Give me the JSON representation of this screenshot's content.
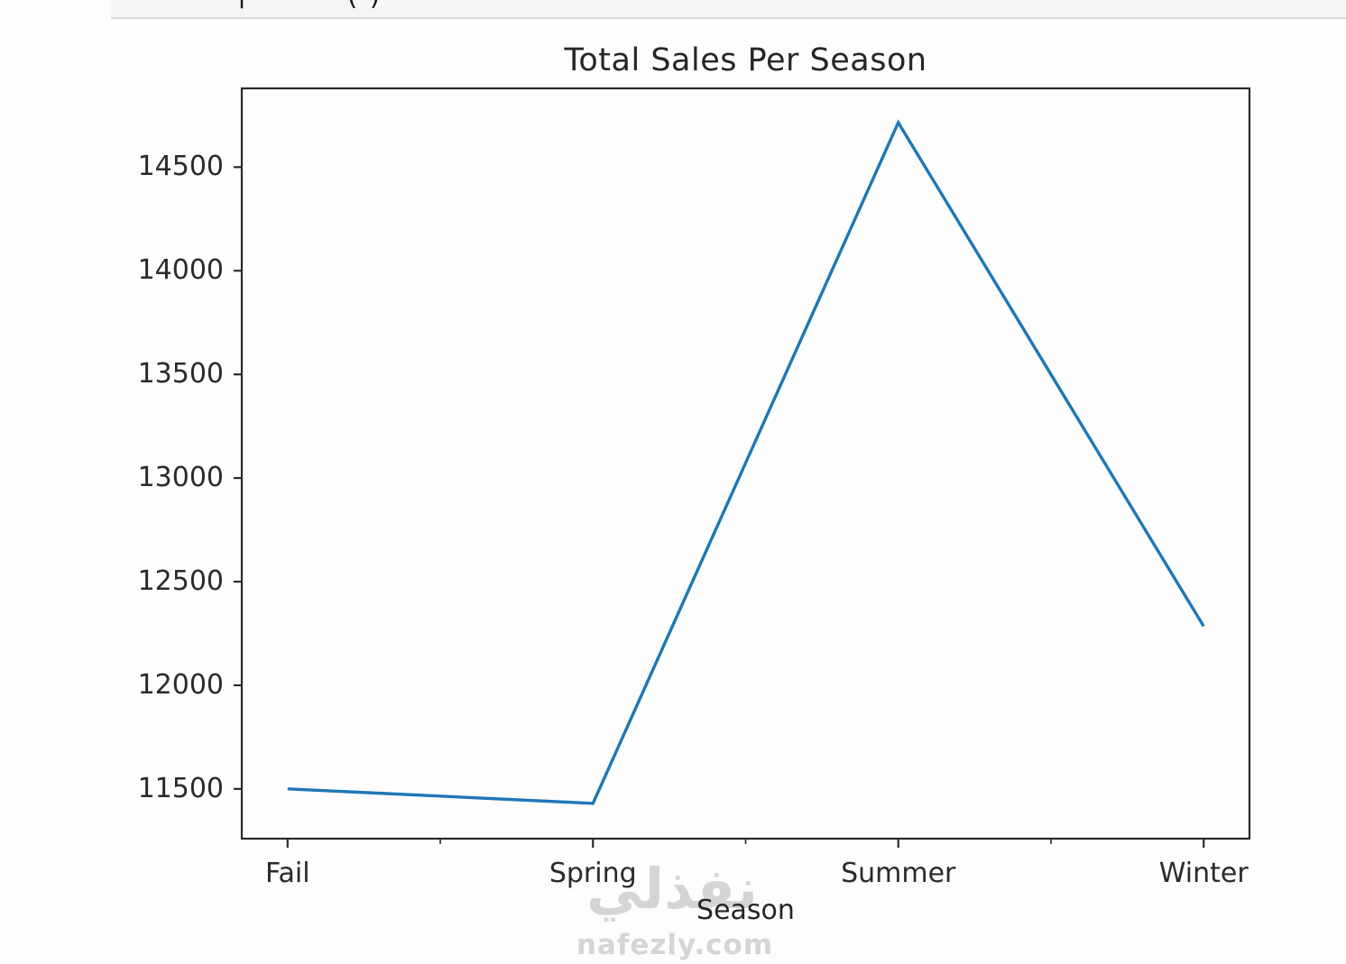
{
  "page": {
    "top_bar": {
      "fragments": [
        "|",
        "()"
      ]
    }
  },
  "chart_data": {
    "type": "line",
    "title": "Total Sales Per Season",
    "xlabel": "Season",
    "ylabel": "",
    "categories": [
      "Fail",
      "Spring",
      "Summer",
      "Winter"
    ],
    "values": [
      11500,
      11430,
      14715,
      12285
    ],
    "y_ticks": [
      11500,
      12000,
      12500,
      13000,
      13500,
      14000,
      14500
    ],
    "ylim": [
      11260,
      14880
    ],
    "xlim": [
      -0.15,
      3.15
    ],
    "line_color": "#1f77b4",
    "axis_color": "#2a2a2a",
    "grid": false,
    "legend": null
  },
  "watermark": {
    "logo_text": "نفذلي",
    "site": "nafezly.com",
    "color": "#d5d5d5"
  }
}
